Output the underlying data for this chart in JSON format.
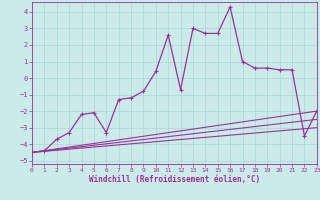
{
  "xlabel": "Windchill (Refroidissement éolien,°C)",
  "xlim": [
    0,
    23
  ],
  "ylim": [
    -5.2,
    4.6
  ],
  "yticks": [
    -5,
    -4,
    -3,
    -2,
    -1,
    0,
    1,
    2,
    3,
    4
  ],
  "xticks": [
    0,
    1,
    2,
    3,
    4,
    5,
    6,
    7,
    8,
    9,
    10,
    11,
    12,
    13,
    14,
    15,
    16,
    17,
    18,
    19,
    20,
    21,
    22,
    23
  ],
  "bg_color": "#cbeaea",
  "grid_color": "#a8d8d8",
  "line_color": "#993399",
  "main_x": [
    0,
    1,
    2,
    3,
    4,
    5,
    6,
    7,
    8,
    9,
    10,
    11,
    12,
    13,
    14,
    15,
    16,
    17,
    18,
    19,
    20,
    21,
    22,
    23
  ],
  "main_y": [
    -4.5,
    -4.4,
    -3.7,
    -3.3,
    -2.2,
    -2.1,
    -3.3,
    -1.3,
    -1.2,
    -0.8,
    0.4,
    2.6,
    -0.7,
    3.0,
    2.7,
    2.7,
    4.3,
    1.0,
    0.6,
    0.6,
    0.5,
    0.5,
    -3.5,
    -2.0
  ],
  "trend1_x": [
    0,
    23
  ],
  "trend1_y": [
    -4.5,
    -2.0
  ],
  "trend2_x": [
    0,
    23
  ],
  "trend2_y": [
    -4.5,
    -2.5
  ],
  "trend3_x": [
    0,
    23
  ],
  "trend3_y": [
    -4.5,
    -3.0
  ]
}
